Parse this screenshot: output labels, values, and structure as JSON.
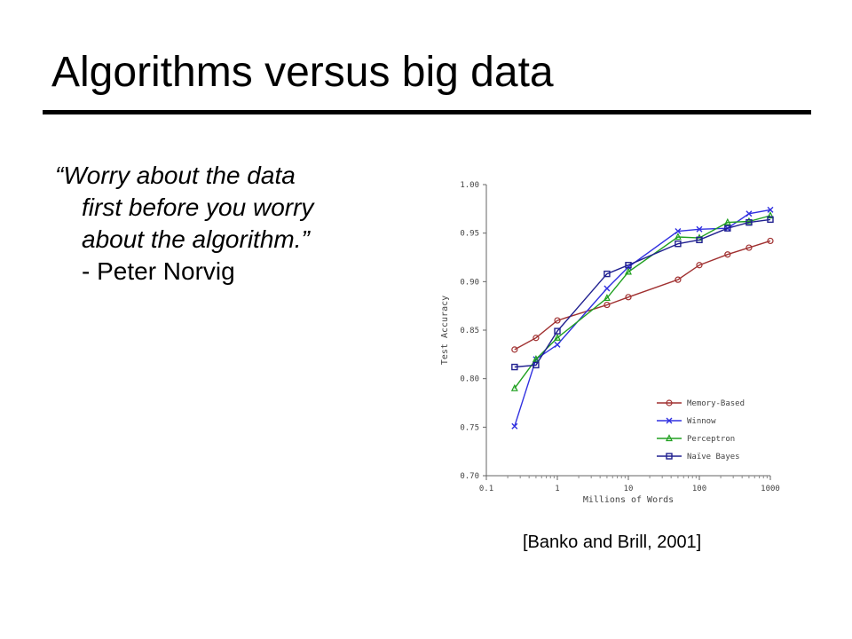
{
  "slide": {
    "title": "Algorithms versus big data",
    "quote_lines": [
      "“Worry about the data",
      "first before you worry",
      "about the algorithm.”",
      "- Peter Norvig"
    ],
    "citation": "[Banko and Brill, 2001]"
  },
  "chart_data": {
    "type": "line",
    "title": "",
    "xlabel": "Millions of Words",
    "ylabel": "Test Accuracy",
    "xscale": "log",
    "xlim": [
      0.1,
      1000
    ],
    "ylim": [
      0.7,
      1.0
    ],
    "x_ticks": [
      0.1,
      1,
      10,
      100,
      1000
    ],
    "x_tick_labels": [
      "0.1",
      "1",
      "10",
      "100",
      "1000"
    ],
    "y_ticks": [
      0.7,
      0.75,
      0.8,
      0.85,
      0.9,
      0.95,
      1.0
    ],
    "y_tick_labels": [
      "0.70",
      "0.75",
      "0.80",
      "0.85",
      "0.90",
      "0.95",
      "1.00"
    ],
    "grid": false,
    "legend_position": "bottom-right",
    "series": [
      {
        "name": "Memory-Based",
        "color": "#a03030",
        "marker": "circle",
        "x": [
          0.25,
          0.5,
          1,
          5,
          10,
          50,
          100,
          250,
          500,
          1000
        ],
        "y": [
          0.83,
          0.842,
          0.86,
          0.876,
          0.884,
          0.902,
          0.917,
          0.928,
          0.935,
          0.942
        ]
      },
      {
        "name": "Winnow",
        "color": "#3030e0",
        "marker": "x",
        "x": [
          0.25,
          0.5,
          1,
          5,
          10,
          50,
          100,
          250,
          500,
          1000
        ],
        "y": [
          0.751,
          0.82,
          0.835,
          0.893,
          0.915,
          0.952,
          0.954,
          0.955,
          0.97,
          0.974
        ]
      },
      {
        "name": "Perceptron",
        "color": "#20a020",
        "marker": "triangle",
        "x": [
          0.25,
          0.5,
          1,
          5,
          10,
          50,
          100,
          250,
          500,
          1000
        ],
        "y": [
          0.79,
          0.82,
          0.842,
          0.883,
          0.91,
          0.946,
          0.945,
          0.961,
          0.962,
          0.968
        ]
      },
      {
        "name": "Naïve Bayes",
        "color": "#202090",
        "marker": "square",
        "x": [
          0.25,
          0.5,
          1,
          5,
          10,
          50,
          100,
          250,
          500,
          1000
        ],
        "y": [
          0.812,
          0.814,
          0.849,
          0.908,
          0.917,
          0.939,
          0.943,
          0.955,
          0.961,
          0.964
        ]
      }
    ]
  }
}
